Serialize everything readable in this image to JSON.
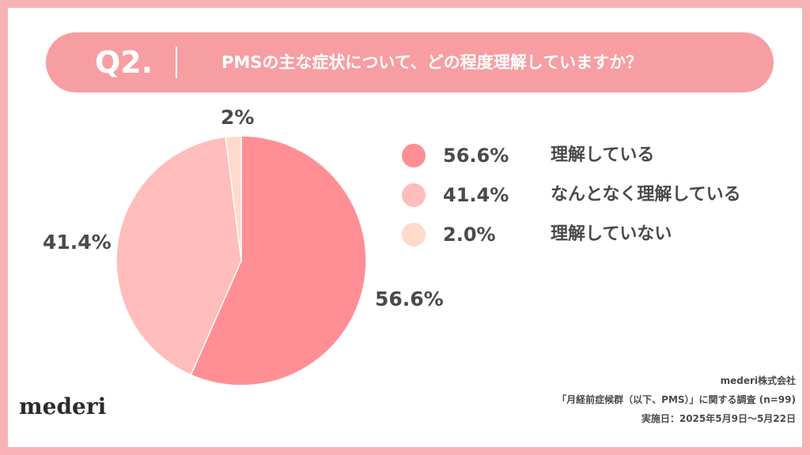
{
  "question": {
    "number": "Q2.",
    "text": "PMSの主な症状について、どの程度理解していますか？"
  },
  "chart_data": {
    "type": "pie",
    "categories": [
      "理解している",
      "なんとなく理解している",
      "理解していない"
    ],
    "values": [
      56.6,
      41.4,
      2.0
    ],
    "legend_labels": [
      "56.6%",
      "41.4%",
      "2.0%"
    ],
    "slice_labels": [
      "56.6%",
      "41.4%",
      "2%"
    ],
    "colors": [
      "#ff8f94",
      "#ffbdbb",
      "#ffd9cc"
    ],
    "legend_position": "right"
  },
  "brand": {
    "logo": "mederi"
  },
  "footer": {
    "company": "mederi株式会社",
    "survey": "「月経前症候群（以下、PMS）」に関する調査 (n=99)",
    "period": "実施日：2025年5月9日〜5月22日"
  }
}
